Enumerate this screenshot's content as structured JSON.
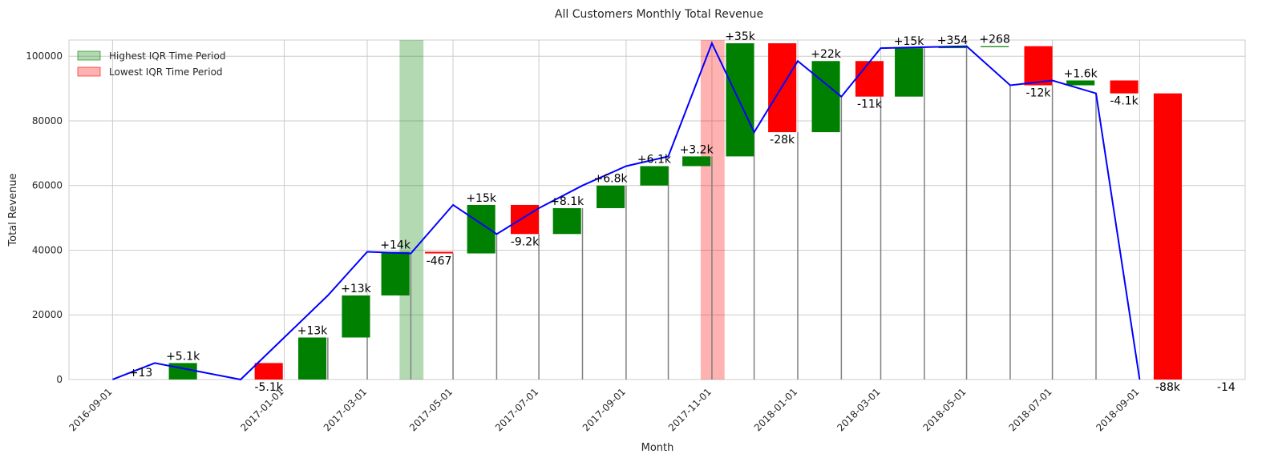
{
  "chart_data": {
    "type": "bar",
    "title": "All Customers Monthly Total Revenue",
    "xlabel": "Month",
    "ylabel": "Total Revenue",
    "ylim": [
      0,
      105000
    ],
    "yticks": [
      0,
      20000,
      40000,
      60000,
      80000,
      100000
    ],
    "xlim": [
      "2016-08-01",
      "2018-11-15"
    ],
    "xticks": [
      "2016-09-01",
      "2017-01-01",
      "2017-03-01",
      "2017-05-01",
      "2017-07-01",
      "2017-09-01",
      "2017-11-01",
      "2018-01-01",
      "2018-03-01",
      "2018-05-01",
      "2018-07-01",
      "2018-09-01"
    ],
    "grid": true,
    "legend_position": "top-left",
    "legend": [
      {
        "label": "Highest IQR Time Period",
        "color": "#008000"
      },
      {
        "label": "Lowest IQR Time Period",
        "color": "#ff0000"
      }
    ],
    "colors": {
      "increase": "#008000",
      "decrease": "#ff0000",
      "line": "#0000ff",
      "stem": "#808080"
    },
    "highlights": [
      {
        "type": "highest",
        "start": "2017-03-24",
        "end": "2017-04-10"
      },
      {
        "type": "lowest",
        "start": "2017-10-24",
        "end": "2017-11-10"
      }
    ],
    "months": [
      "2016-09-01",
      "2016-10-01",
      "2016-12-01",
      "2017-01-01",
      "2017-02-01",
      "2017-03-01",
      "2017-04-01",
      "2017-05-01",
      "2017-06-01",
      "2017-07-01",
      "2017-08-01",
      "2017-09-01",
      "2017-10-01",
      "2017-11-01",
      "2017-12-01",
      "2018-01-01",
      "2018-02-01",
      "2018-03-01",
      "2018-04-01",
      "2018-05-01",
      "2018-06-01",
      "2018-07-01",
      "2018-08-01",
      "2018-09-01",
      "2018-10-01"
    ],
    "totals": [
      13,
      5100,
      0,
      13000,
      26000,
      39500,
      39000,
      54000,
      45000,
      53000,
      60000,
      66000,
      69000,
      104000,
      76500,
      98500,
      87500,
      102500,
      102800,
      103100,
      91000,
      92500,
      88500,
      0,
      0
    ],
    "changes": [
      "+13",
      "+5.1k",
      "-5.1k",
      "+13k",
      "+13k",
      "+14k",
      "-467",
      "+15k",
      "-9.2k",
      "+8.1k",
      "+6.8k",
      "+6.1k",
      "+3.2k",
      "+35k",
      "-28k",
      "+22k",
      "-11k",
      "+15k",
      "+354",
      "+268",
      "-12k",
      "+1.6k",
      "-4.1k",
      "-88k",
      "-14"
    ],
    "label_positions": [
      "above",
      "above",
      "below",
      "above",
      "above",
      "above",
      "below",
      "above",
      "below",
      "above",
      "above",
      "above",
      "above",
      "above",
      "below",
      "above",
      "below",
      "above",
      "above",
      "above",
      "below",
      "above",
      "below",
      "below",
      "right"
    ]
  }
}
